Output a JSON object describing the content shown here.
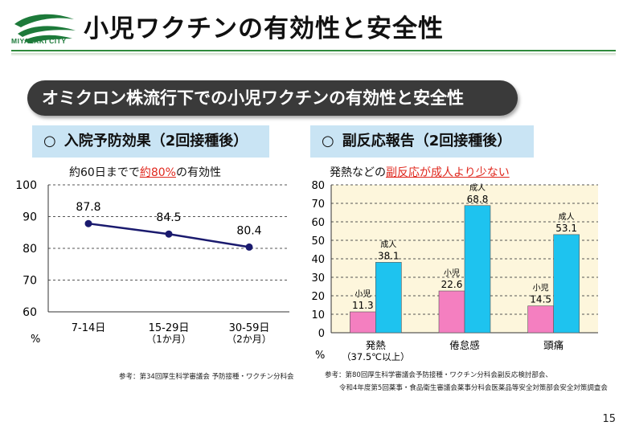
{
  "header": {
    "logo_text": "MIYAZAKI  CITY",
    "title": "小児ワクチンの有効性と安全性"
  },
  "banner": {
    "text": "オミクロン株流行下での小児ワクチンの有効性と安全性"
  },
  "left": {
    "heading_mark": "○",
    "heading": "入院予防効果（2回接種後）",
    "subtitle_pre": "約60日までで",
    "subtitle_highlight": "約80%",
    "subtitle_post": "の有効性",
    "unit_label": "%",
    "note": "参考：第34回厚生科学審議会 予防接種・ワクチン分科会"
  },
  "right": {
    "heading_mark": "○",
    "heading": "副反応報告（2回接種後）",
    "subtitle_pre": "発熱などの",
    "subtitle_highlight": "副反応が成人より少ない",
    "unit_label": "%",
    "note_line1": "参考：第80回厚生科学審議会予防接種・ワクチン分科会副反応検討部会、",
    "note_line2": "令和4年度第5回薬事・食品衛生審議会薬事分科会医薬品等安全対策部会安全対策調査会"
  },
  "page_number": "15",
  "chart_data": [
    {
      "type": "line",
      "categories": [
        [
          "7-14日"
        ],
        [
          "15-29日",
          "（1か月）"
        ],
        [
          "30-59日",
          "（2か月）"
        ]
      ],
      "values": [
        87.8,
        84.5,
        80.4
      ],
      "value_labels": [
        "87.8",
        "84.5",
        "80.4"
      ],
      "yticks": [
        "100",
        "90",
        "80",
        "70",
        "60"
      ],
      "ylim": [
        60,
        100
      ],
      "line_color": "#1a1a6e",
      "grid": "dashed horizontal"
    },
    {
      "type": "bar",
      "categories": [
        [
          "発熱",
          "（37.5℃以上）"
        ],
        [
          "倦怠感"
        ],
        [
          "頭痛"
        ]
      ],
      "series": [
        {
          "name": "小児",
          "values": [
            11.3,
            22.6,
            14.5
          ],
          "labels": [
            "11.3",
            "22.6",
            "14.5"
          ],
          "color": "#f47fc0"
        },
        {
          "name": "成人",
          "values": [
            38.1,
            68.8,
            53.1
          ],
          "labels": [
            "38.1",
            "68.8",
            "53.1"
          ],
          "color": "#1ec3ef"
        }
      ],
      "yticks": [
        "80",
        "70",
        "60",
        "50",
        "40",
        "30",
        "20",
        "10",
        "0"
      ],
      "ylim": [
        0,
        80
      ],
      "plot_bg": "#fdf6dc",
      "grid": "dashed horizontal"
    }
  ]
}
